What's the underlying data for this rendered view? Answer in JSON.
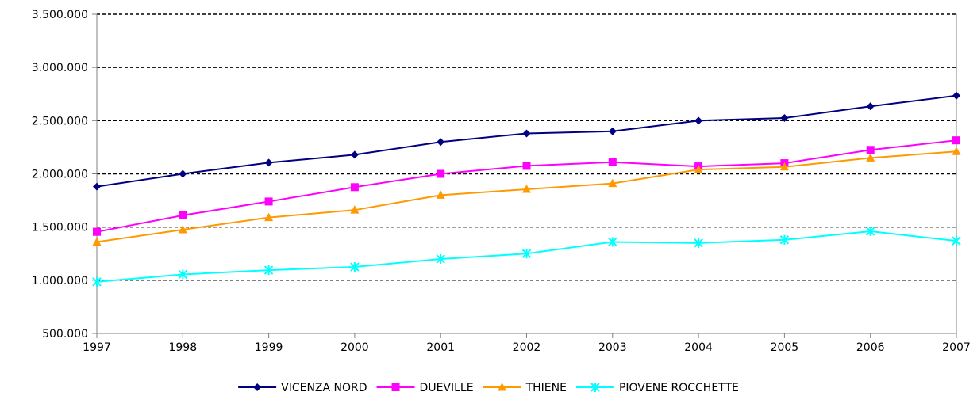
{
  "chart_data": {
    "type": "line",
    "title": "",
    "xlabel": "",
    "ylabel": "",
    "categories": [
      "1997",
      "1998",
      "1999",
      "2000",
      "2001",
      "2002",
      "2003",
      "2004",
      "2005",
      "2006",
      "2007"
    ],
    "ylim": [
      500000,
      3500000
    ],
    "yticks": [
      500000,
      1000000,
      1500000,
      2000000,
      2500000,
      3000000,
      3500000
    ],
    "ytick_labels": [
      "500.000",
      "1.000.000",
      "1.500.000",
      "2.000.000",
      "2.500.000",
      "3.000.000",
      "3.500.000"
    ],
    "grid": "horizontal dashed",
    "legend_position": "bottom",
    "series": [
      {
        "name": "VICENZA NORD",
        "color": "#000080",
        "marker": "diamond",
        "values": [
          1880000,
          2000000,
          2105000,
          2180000,
          2300000,
          2380000,
          2400000,
          2500000,
          2525000,
          2635000,
          2735000
        ]
      },
      {
        "name": "DUEVILLE",
        "color": "#FF00FF",
        "marker": "square",
        "values": [
          1455000,
          1610000,
          1740000,
          1875000,
          2000000,
          2075000,
          2110000,
          2070000,
          2100000,
          2225000,
          2315000
        ]
      },
      {
        "name": "THIENE",
        "color": "#FF9900",
        "marker": "triangle",
        "values": [
          1360000,
          1475000,
          1590000,
          1660000,
          1800000,
          1855000,
          1910000,
          2040000,
          2065000,
          2150000,
          2210000
        ]
      },
      {
        "name": "PIOVENE ROCCHETTE",
        "color": "#00FFFF",
        "marker": "cross",
        "values": [
          985000,
          1055000,
          1095000,
          1125000,
          1200000,
          1250000,
          1360000,
          1350000,
          1380000,
          1460000,
          1370000
        ]
      }
    ]
  }
}
